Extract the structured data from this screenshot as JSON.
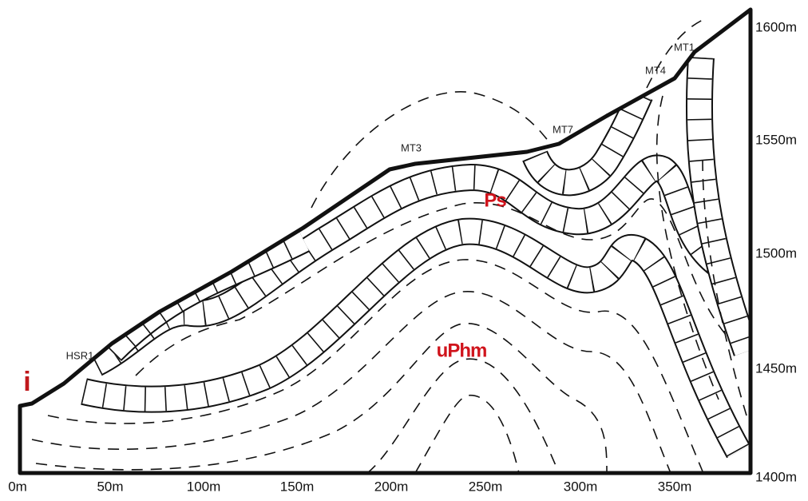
{
  "x_axis": {
    "labels": [
      "0m",
      "50m",
      "100m",
      "150m",
      "200m",
      "250m",
      "300m",
      "350m"
    ]
  },
  "y_axis": {
    "labels": [
      "1600m",
      "1550m",
      "1500m",
      "1450m",
      "1400m"
    ]
  },
  "samples": [
    "HSR1",
    "MT3",
    "MT7",
    "MT4",
    "MT1"
  ],
  "units": [
    "Ps",
    "uPhm"
  ],
  "marker": "i"
}
